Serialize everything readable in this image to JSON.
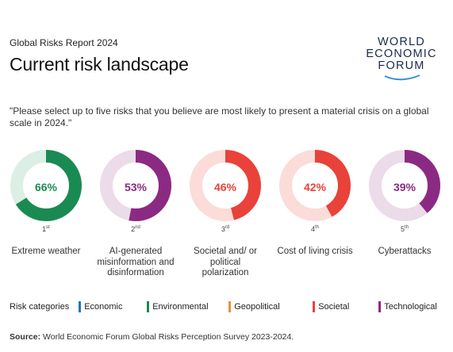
{
  "header": {
    "report": "Global Risks Report 2024",
    "title": "Current risk landscape"
  },
  "logo": {
    "line1": "WORLD",
    "line2": "ECONOMIC",
    "line3": "FORUM"
  },
  "question": "\"Please select up to five risks that you believe are most likely to present a material crisis on a global scale in 2024.\"",
  "chart_data": {
    "type": "pie",
    "donuts": [
      {
        "rank": "1",
        "rank_suffix": "st",
        "value": 66,
        "value_label": "66%",
        "label": "Extreme weather",
        "category": "Environmental"
      },
      {
        "rank": "2",
        "rank_suffix": "nd",
        "value": 53,
        "value_label": "53%",
        "label": "AI-generated misinformation and disinformation",
        "category": "Technological"
      },
      {
        "rank": "3",
        "rank_suffix": "rd",
        "value": 46,
        "value_label": "46%",
        "label": "Societal and/ or political polarization",
        "category": "Societal"
      },
      {
        "rank": "4",
        "rank_suffix": "th",
        "value": 42,
        "value_label": "42%",
        "label": "Cost of living crisis",
        "category": "Societal"
      },
      {
        "rank": "5",
        "rank_suffix": "th",
        "value": 39,
        "value_label": "39%",
        "label": "Cyberattacks",
        "category": "Technological"
      }
    ]
  },
  "legend": {
    "title": "Risk categories",
    "items": [
      {
        "name": "Economic",
        "color": "#1f78b4"
      },
      {
        "name": "Environmental",
        "color": "#1a8a53"
      },
      {
        "name": "Geopolitical",
        "color": "#e8913a"
      },
      {
        "name": "Societal",
        "color": "#e8423a"
      },
      {
        "name": "Technological",
        "color": "#8b2a82"
      }
    ]
  },
  "colors": {
    "Environmental": {
      "main": "#1a8a53",
      "light": "#dcefe4",
      "text": "#1a8a53"
    },
    "Technological": {
      "main": "#8b2a82",
      "light": "#ecdbe9",
      "text": "#8b2a82"
    },
    "Societal": {
      "main": "#e8423a",
      "light": "#fbdcd9",
      "text": "#e8423a"
    }
  },
  "source": {
    "label": "Source:",
    "text": "World Economic Forum Global Risks Perception Survey 2023-2024."
  }
}
